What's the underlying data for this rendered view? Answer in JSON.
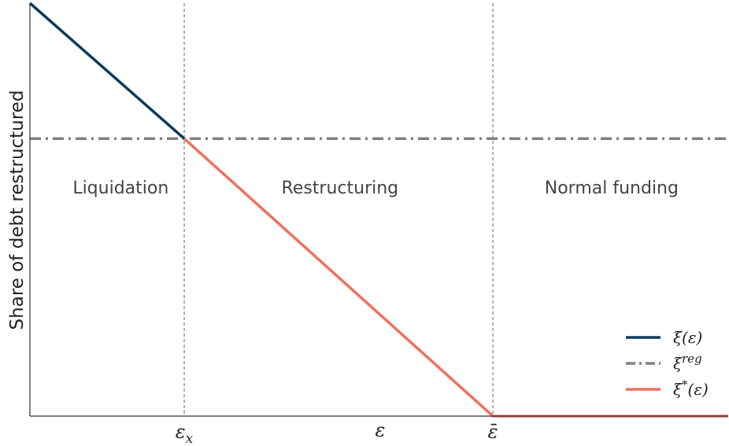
{
  "chart_data": {
    "type": "line",
    "title": "",
    "xlabel": "ε",
    "ylabel": "Share of debt restructured",
    "xlim": [
      0,
      1
    ],
    "ylim": [
      0,
      1
    ],
    "grid": false,
    "legend_position": "bottom-right",
    "x_ticks": [
      {
        "value": 0.221,
        "label": "εx"
      },
      {
        "value": 0.663,
        "label": "ε̄"
      }
    ],
    "vertical_markers": [
      0.221,
      0.663
    ],
    "regions": [
      {
        "label": "Liquidation",
        "x_center": 0.13
      },
      {
        "label": "Restructuring",
        "x_center": 0.444
      },
      {
        "label": "Normal funding",
        "x_center": 0.833
      }
    ],
    "series": [
      {
        "name": "ξ(ε)",
        "color": "#0d3a5c",
        "style": "solid",
        "x": [
          0,
          0.221
        ],
        "y": [
          1.0,
          0.672
        ]
      },
      {
        "name": "ξ^reg",
        "color": "#808080",
        "style": "dashdot",
        "x": [
          0,
          1
        ],
        "y": [
          0.672,
          0.672
        ]
      },
      {
        "name": "ξ*(ε)",
        "color": "#f07060",
        "style": "solid",
        "x": [
          0.221,
          0.663,
          1.0
        ],
        "y": [
          0.672,
          0.0,
          0.0
        ]
      }
    ]
  }
}
